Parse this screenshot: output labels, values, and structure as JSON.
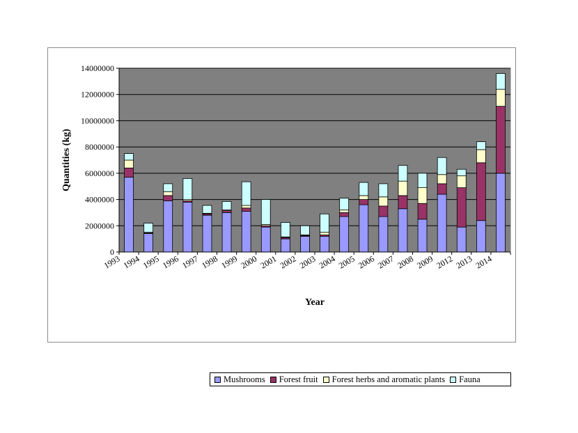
{
  "chart_data": {
    "type": "bar",
    "stacked": true,
    "title": "",
    "xlabel": "Year",
    "ylabel": "Quantities (kg)",
    "ylim": [
      0,
      14000000
    ],
    "yticks": [
      0,
      2000000,
      4000000,
      6000000,
      8000000,
      10000000,
      12000000,
      14000000
    ],
    "ytick_labels": [
      "0",
      "2000000",
      "4000000",
      "6000000",
      "8000000",
      "10000000",
      "12000000",
      "14000000"
    ],
    "grid": "horizontal",
    "plot_background": "#808080",
    "categories": [
      "1993",
      "1994",
      "1995",
      "1996",
      "1997",
      "1998",
      "1999",
      "2000",
      "2001",
      "2002",
      "2003",
      "2004",
      "2005",
      "2006",
      "2007",
      "2008",
      "2009",
      "2012",
      "2013",
      "2014"
    ],
    "series": [
      {
        "name": "Mushrooms",
        "color": "#9999ff",
        "values": [
          5700000,
          1400000,
          3900000,
          3800000,
          2800000,
          3000000,
          3100000,
          1900000,
          1000000,
          1200000,
          1200000,
          2700000,
          3600000,
          2700000,
          3300000,
          2500000,
          4400000,
          1900000,
          2400000,
          6000000
        ]
      },
      {
        "name": "Forest fruit",
        "color": "#993366",
        "values": [
          700000,
          50000,
          400000,
          100000,
          100000,
          150000,
          250000,
          100000,
          100000,
          50000,
          100000,
          300000,
          400000,
          800000,
          1000000,
          1200000,
          800000,
          3000000,
          4400000,
          5100000
        ]
      },
      {
        "name": "Forest herbs and aromatic plants",
        "color": "#ffffcc",
        "values": [
          600000,
          50000,
          300000,
          100000,
          50000,
          50000,
          200000,
          100000,
          50000,
          50000,
          200000,
          200000,
          300000,
          700000,
          1100000,
          1200000,
          700000,
          900000,
          1000000,
          1300000
        ]
      },
      {
        "name": "Fauna",
        "color": "#ccffff",
        "values": [
          500000,
          700000,
          600000,
          1600000,
          600000,
          650000,
          1800000,
          1900000,
          1100000,
          700000,
          1400000,
          900000,
          1000000,
          1000000,
          1200000,
          1100000,
          1300000,
          500000,
          600000,
          1200000
        ]
      }
    ],
    "legend_position": "bottom"
  }
}
